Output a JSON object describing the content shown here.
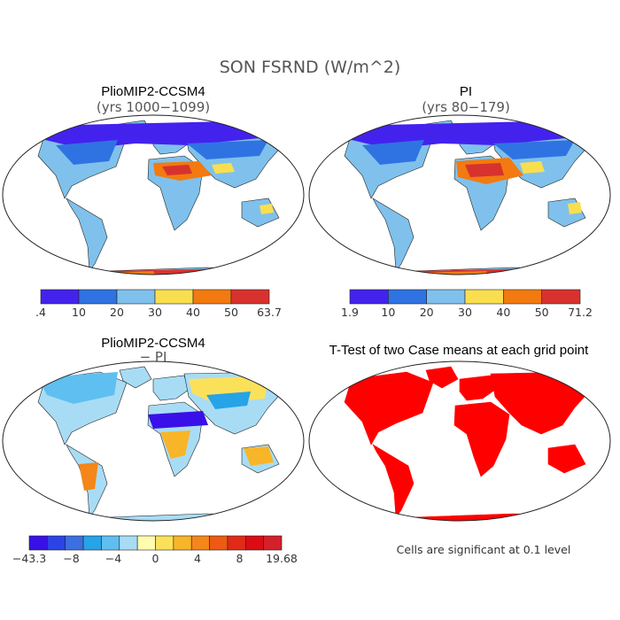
{
  "figure": {
    "title": "SON FSRND (W/m^2)"
  },
  "chart_data": [
    {
      "type": "heatmap",
      "title": "PlioMIP2-CCSM4",
      "subtitle": "(yrs 1000−1099)",
      "colorbar": {
        "labels": [
          ".4",
          "10",
          "20",
          "30",
          "40",
          "50",
          "63.7"
        ],
        "colors": [
          "#4422ee",
          "#2f73e2",
          "#7fc1ec",
          "#f9de50",
          "#f27a10",
          "#d8322e"
        ]
      }
    },
    {
      "type": "heatmap",
      "title": "PI",
      "subtitle": "(yrs 80−179)",
      "colorbar": {
        "labels": [
          "1.9",
          "10",
          "20",
          "30",
          "40",
          "50",
          "71.2"
        ],
        "colors": [
          "#4422ee",
          "#2f73e2",
          "#7fc1ec",
          "#f9de50",
          "#f27a10",
          "#d8322e"
        ]
      }
    },
    {
      "type": "heatmap",
      "title": "PlioMIP2-CCSM4",
      "subtitle": "− PI",
      "colorbar": {
        "labels": [
          "−43.3",
          "−8",
          "−4",
          "0",
          "4",
          "8",
          "19.68"
        ],
        "colors": [
          "#3a10e8",
          "#2c44e4",
          "#3c6fe0",
          "#27a3e8",
          "#5fbff0",
          "#a8dcf5",
          "#fffcb0",
          "#fbe15a",
          "#f8b528",
          "#f4861a",
          "#ee5a12",
          "#e22a18",
          "#dc0c14",
          "#d4202a"
        ]
      }
    },
    {
      "type": "heatmap",
      "title": "T-Test of two Case means at each grid point",
      "note": "Cells are significant at 0.1 level",
      "color": "#ff0000"
    }
  ]
}
